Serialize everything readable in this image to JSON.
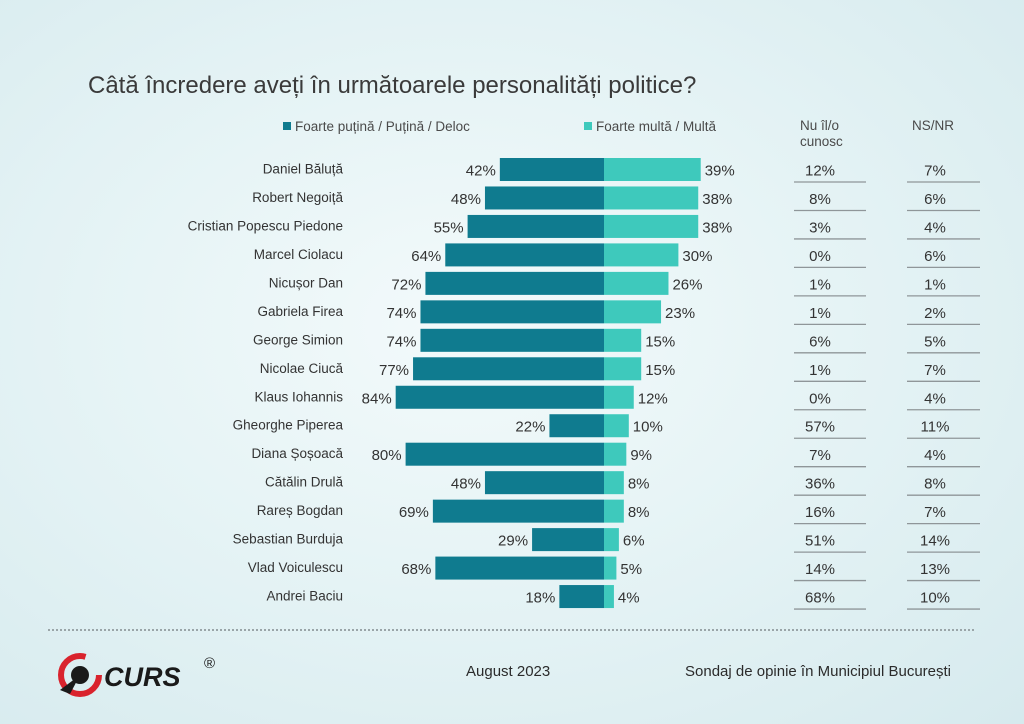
{
  "title": "Câtă încredere aveți în următoarele personalități politice?",
  "legend": {
    "negative_label": "Foarte puțină / Puțină / Deloc",
    "positive_label": "Foarte multă / Multă"
  },
  "columns": {
    "unknown_head_line1": "Nu îl/o",
    "unknown_head_line2": "cunosc",
    "nsnr_head": "NS/NR"
  },
  "colors": {
    "negative": "#0f7b8f",
    "positive": "#3ec9bc",
    "logo_red": "#d9232d",
    "logo_dark": "#1a1a1a"
  },
  "chart_data": {
    "type": "bar",
    "title": "Câtă încredere aveți în următoarele personalități politice?",
    "categories": [
      "Daniel Băluță",
      "Robert Negoiță",
      "Cristian Popescu Piedone",
      "Marcel Ciolacu",
      "Nicușor Dan",
      "Gabriela Firea",
      "George Simion",
      "Nicolae Ciucă",
      "Klaus Iohannis",
      "Gheorghe Piperea",
      "Diana Șoșoacă",
      "Cătălin Drulă",
      "Rareș Bogdan",
      "Sebastian Burduja",
      "Vlad Voiculescu",
      "Andrei Baciu"
    ],
    "series": [
      {
        "name": "Foarte puțină / Puțină / Deloc",
        "values": [
          42,
          48,
          55,
          64,
          72,
          74,
          74,
          77,
          84,
          22,
          80,
          48,
          69,
          29,
          68,
          18
        ]
      },
      {
        "name": "Foarte multă / Multă",
        "values": [
          39,
          38,
          38,
          30,
          26,
          23,
          15,
          15,
          12,
          10,
          9,
          8,
          8,
          6,
          5,
          4
        ]
      },
      {
        "name": "Nu îl/o cunosc",
        "values": [
          12,
          8,
          3,
          0,
          1,
          1,
          6,
          1,
          0,
          57,
          7,
          36,
          16,
          51,
          14,
          68
        ]
      },
      {
        "name": "NS/NR",
        "values": [
          7,
          6,
          4,
          6,
          1,
          2,
          5,
          7,
          4,
          11,
          4,
          8,
          7,
          14,
          13,
          10
        ]
      }
    ],
    "unit": "%",
    "orientation": "horizontal diverging"
  },
  "footer": {
    "logo_text": "CURS",
    "logo_mark": "®",
    "date": "August 2023",
    "source": "Sondaj de opinie în Municipiul București"
  }
}
